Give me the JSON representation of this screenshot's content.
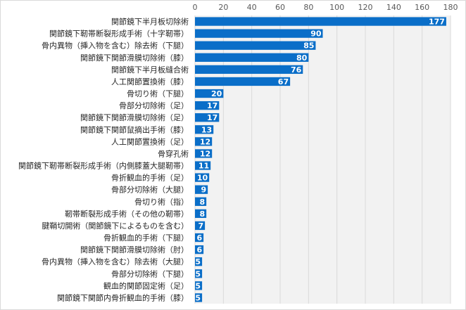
{
  "chart_data": {
    "type": "bar",
    "orientation": "horizontal",
    "categories": [
      "関節鏡下半月板切除術",
      "関節鏡下靭帯断裂形成手術（十字靭帯）",
      "骨内異物（挿入物を含む）除去術（下腿）",
      "関節鏡下関節滑膜切除術（膝）",
      "関節鏡下半月板縫合術",
      "人工関節置換術（膝）",
      "骨切り術（下腿）",
      "骨部分切除術（足）",
      "関節鏡下関節滑膜切除術（足）",
      "関節鏡下関節鼠摘出手術（膝）",
      "人工関節置換術（足）",
      "骨穿孔術",
      "関節鏡下靭帯断裂形成手術（内側膝蓋大腿靭帯）",
      "骨折観血的手術（足）",
      "骨部分切除術（大腿）",
      "骨切り術（指）",
      "靭帯断裂形成手術（その他の靭帯）",
      "腱鞘切開術（関節鏡下によるものを含む）",
      "骨折観血的手術（下腿）",
      "関節鏡下関節滑膜切除術（肘）",
      "骨内異物（挿入物を含む）除去術（大腿）",
      "骨部分切除術（下腿）",
      "観血的関節固定術（足）",
      "関節鏡下関節内骨折観血的手術（膝）"
    ],
    "values": [
      177,
      90,
      85,
      80,
      76,
      67,
      20,
      17,
      17,
      13,
      12,
      12,
      11,
      10,
      9,
      8,
      8,
      7,
      6,
      6,
      5,
      5,
      5,
      5
    ],
    "xlim": [
      0,
      180
    ],
    "xticks": [
      0,
      20,
      40,
      60,
      80,
      100,
      120,
      140,
      160,
      180
    ],
    "x_axis_position": "top",
    "grid": true,
    "data_labels": true,
    "title": "",
    "xlabel": "",
    "ylabel": "",
    "colors": {
      "bar": "#0A6EC8",
      "grid": "#d9d9d9",
      "plot_background": "#f2f2f2",
      "data_label": "#ffffff"
    }
  }
}
